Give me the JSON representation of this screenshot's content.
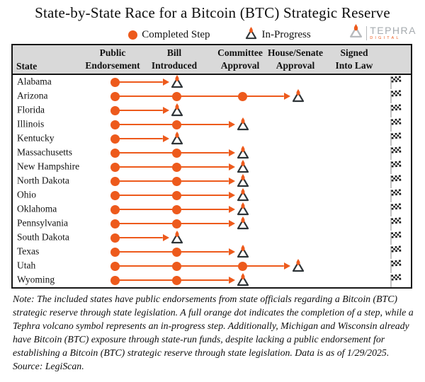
{
  "chart_data": {
    "type": "table",
    "title": "State-by-State Race for a Bitcoin (BTC) Strategic Reserve",
    "legend": {
      "completed_label": "Completed Step",
      "in_progress_label": "In-Progress"
    },
    "columns": {
      "state": "State",
      "steps": [
        "Public Endorsement",
        "Bill Introduced",
        "Committee Approval",
        "House/Senate Approval",
        "Signed Into Law"
      ],
      "step_header_lines": [
        [
          "Public",
          "Endorsement"
        ],
        [
          "Bill",
          "Introduced"
        ],
        [
          "Committee",
          "Approval"
        ],
        [
          "House/Senate",
          "Approval"
        ],
        [
          "Signed",
          "Into Law"
        ]
      ]
    },
    "states": [
      {
        "name": "Alabama",
        "completed": [
          "Public Endorsement"
        ],
        "in_progress": "Bill Introduced"
      },
      {
        "name": "Arizona",
        "completed": [
          "Public Endorsement",
          "Bill Introduced",
          "Committee Approval"
        ],
        "in_progress": "House/Senate Approval"
      },
      {
        "name": "Florida",
        "completed": [
          "Public Endorsement"
        ],
        "in_progress": "Bill Introduced"
      },
      {
        "name": "Illinois",
        "completed": [
          "Public Endorsement",
          "Bill Introduced"
        ],
        "in_progress": "Committee Approval"
      },
      {
        "name": "Kentucky",
        "completed": [
          "Public Endorsement"
        ],
        "in_progress": "Bill Introduced"
      },
      {
        "name": "Massachusetts",
        "completed": [
          "Public Endorsement",
          "Bill Introduced"
        ],
        "in_progress": "Committee Approval"
      },
      {
        "name": "New Hampshire",
        "completed": [
          "Public Endorsement",
          "Bill Introduced"
        ],
        "in_progress": "Committee Approval"
      },
      {
        "name": "North Dakota",
        "completed": [
          "Public Endorsement",
          "Bill Introduced"
        ],
        "in_progress": "Committee Approval"
      },
      {
        "name": "Ohio",
        "completed": [
          "Public Endorsement",
          "Bill Introduced"
        ],
        "in_progress": "Committee Approval"
      },
      {
        "name": "Oklahoma",
        "completed": [
          "Public Endorsement",
          "Bill Introduced"
        ],
        "in_progress": "Committee Approval"
      },
      {
        "name": "Pennsylvania",
        "completed": [
          "Public Endorsement",
          "Bill Introduced"
        ],
        "in_progress": "Committee Approval"
      },
      {
        "name": "South Dakota",
        "completed": [
          "Public Endorsement"
        ],
        "in_progress": "Bill Introduced"
      },
      {
        "name": "Texas",
        "completed": [
          "Public Endorsement",
          "Bill Introduced"
        ],
        "in_progress": "Committee Approval"
      },
      {
        "name": "Utah",
        "completed": [
          "Public Endorsement",
          "Bill Introduced",
          "Committee Approval"
        ],
        "in_progress": "House/Senate Approval"
      },
      {
        "name": "Wyoming",
        "completed": [
          "Public Endorsement",
          "Bill Introduced"
        ],
        "in_progress": "Committee Approval"
      }
    ]
  },
  "colors": {
    "accent_orange": "#ED5A1C",
    "header_bg": "#D9D9D9",
    "volcano_outline": "#2E3438",
    "logo_gray": "#A6ABAF"
  },
  "logo": {
    "name": "TEPHRA",
    "subtitle": "DIGITAL"
  },
  "note": "Note: The included states have public endorsements from state officials regarding a Bitcoin (BTC) strategic reserve through state legislation. A full orange dot indicates the completion of a step, while a Tephra volcano symbol represents an in-progress step. Additionally, Michigan and Wisconsin already have Bitcoin (BTC) exposure through state-run funds, despite lacking a public endorsement for establishing a Bitcoin (BTC) strategic reserve through state legislation. Data is as of 1/29/2025.",
  "source": "Source: LegiScan."
}
